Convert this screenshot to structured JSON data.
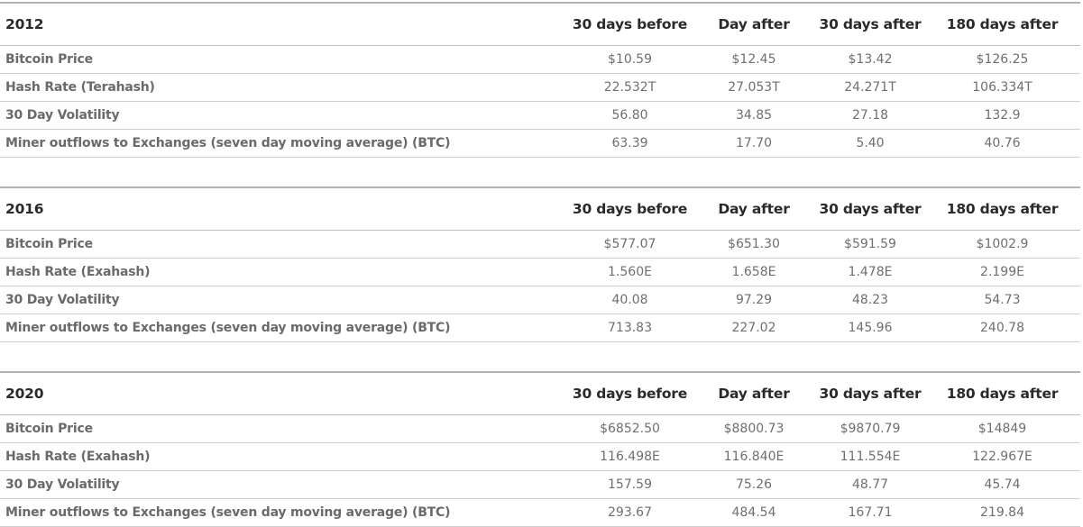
{
  "columns": [
    "30 days before",
    "Day after",
    "30 days after",
    "180 days after"
  ],
  "tables": [
    {
      "year": "2012",
      "rows": [
        {
          "label": "Bitcoin Price",
          "values": [
            "$10.59",
            "$12.45",
            "$13.42",
            "$126.25"
          ]
        },
        {
          "label": "Hash Rate (Terahash)",
          "values": [
            "22.532T",
            "27.053T",
            "24.271T",
            "106.334T"
          ]
        },
        {
          "label": "30 Day Volatility",
          "values": [
            "56.80",
            "34.85",
            "27.18",
            "132.9"
          ]
        },
        {
          "label": "Miner outflows to Exchanges (seven day moving average) (BTC)",
          "values": [
            "63.39",
            "17.70",
            "5.40",
            "40.76"
          ]
        }
      ]
    },
    {
      "year": "2016",
      "rows": [
        {
          "label": "Bitcoin Price",
          "values": [
            "$577.07",
            "$651.30",
            "$591.59",
            "$1002.9"
          ]
        },
        {
          "label": "Hash Rate (Exahash)",
          "values": [
            "1.560E",
            "1.658E",
            "1.478E",
            "2.199E"
          ]
        },
        {
          "label": "30 Day Volatility",
          "values": [
            "40.08",
            "97.29",
            "48.23",
            "54.73"
          ]
        },
        {
          "label": "Miner outflows to Exchanges (seven day moving average) (BTC)",
          "values": [
            "713.83",
            "227.02",
            "145.96",
            "240.78"
          ]
        }
      ]
    },
    {
      "year": "2020",
      "rows": [
        {
          "label": "Bitcoin Price",
          "values": [
            "$6852.50",
            "$8800.73",
            "$9870.79",
            "$14849"
          ]
        },
        {
          "label": "Hash Rate (Exahash)",
          "values": [
            "116.498E",
            "116.840E",
            "111.554E",
            "122.967E"
          ]
        },
        {
          "label": "30 Day Volatility",
          "values": [
            "157.59",
            "75.26",
            "48.77",
            "45.74"
          ]
        },
        {
          "label": "Miner outflows to Exchanges (seven day moving average) (BTC)",
          "values": [
            "293.67",
            "484.54",
            "167.71",
            "219.84"
          ]
        }
      ]
    }
  ]
}
